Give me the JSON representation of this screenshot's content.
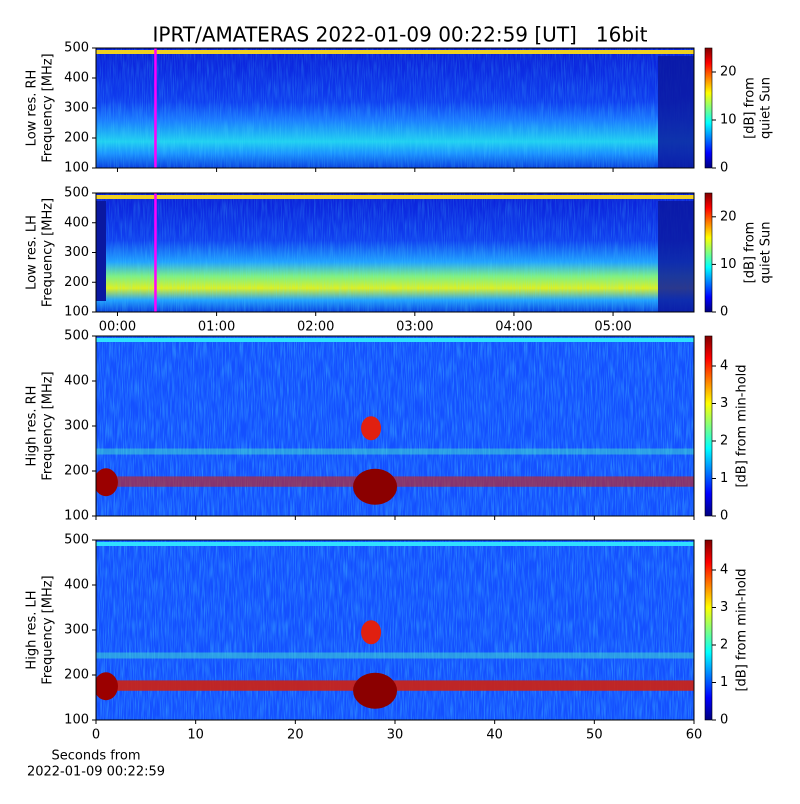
{
  "title": "IPRT/AMATERAS 2022-01-09 00:22:59 [UT]   16bit",
  "chart_data": [
    {
      "type": "heatmap",
      "ylabel": [
        "Low res. RH",
        "Frequency [MHz]"
      ],
      "xlim": [
        -13,
        349
      ],
      "marker_x": 23,
      "marker_color": "#ff00ff",
      "ylim": [
        100,
        500
      ],
      "yticks": [
        100,
        200,
        300,
        400,
        500
      ],
      "colorbar": {
        "label": [
          "[dB] from",
          "quiet Sun"
        ],
        "lim": [
          0,
          25
        ],
        "ticks": [
          0,
          10,
          20
        ]
      }
    },
    {
      "type": "heatmap",
      "ylabel": [
        "Low res. LH",
        "Frequency [MHz]"
      ],
      "xlim": [
        -13,
        349
      ],
      "marker_x": 23,
      "marker_color": "#ff00ff",
      "xticks": [
        {
          "value": 0,
          "label": "00:00"
        },
        {
          "value": 60,
          "label": "01:00"
        },
        {
          "value": 120,
          "label": "02:00"
        },
        {
          "value": 180,
          "label": "03:00"
        },
        {
          "value": 240,
          "label": "04:00"
        },
        {
          "value": 300,
          "label": "05:00"
        }
      ],
      "ylim": [
        100,
        500
      ],
      "yticks": [
        100,
        200,
        300,
        400,
        500
      ],
      "colorbar": {
        "label": [
          "[dB] from",
          "quiet Sun"
        ],
        "lim": [
          0,
          25
        ],
        "ticks": [
          0,
          10,
          20
        ]
      }
    },
    {
      "type": "heatmap",
      "ylabel": [
        "High res. RH",
        "Frequency [MHz]"
      ],
      "xlim": [
        0,
        60
      ],
      "ylim": [
        100,
        500
      ],
      "yticks": [
        100,
        200,
        300,
        400,
        500
      ],
      "colorbar": {
        "label": [
          "[dB] from min-hold"
        ],
        "lim": [
          0,
          4.8
        ],
        "ticks": [
          0,
          1,
          2,
          3,
          4
        ]
      }
    },
    {
      "type": "heatmap",
      "ylabel": [
        "High res. LH",
        "Frequency [MHz]"
      ],
      "xlim": [
        0,
        60
      ],
      "xticks": [
        0,
        10,
        20,
        30,
        40,
        50,
        60
      ],
      "xlabel": [
        "Seconds from",
        "2022-01-09 00:22:59"
      ],
      "ylim": [
        100,
        500
      ],
      "yticks": [
        100,
        200,
        300,
        400,
        500
      ],
      "colorbar": {
        "label": [
          "[dB] from min-hold"
        ],
        "lim": [
          0,
          4.8
        ],
        "ticks": [
          0,
          1,
          2,
          3,
          4
        ]
      }
    }
  ]
}
